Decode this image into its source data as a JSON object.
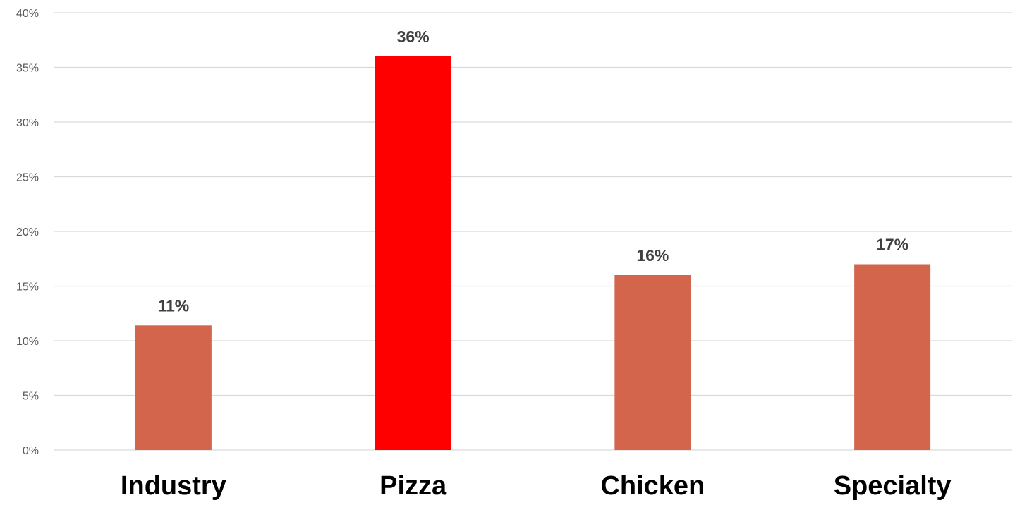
{
  "chart_data": {
    "type": "bar",
    "categories": [
      "Industry",
      "Pizza",
      "Chicken",
      "Specialty"
    ],
    "values": [
      11.4,
      36.0,
      16.0,
      17.0
    ],
    "data_labels": [
      "11%",
      "36%",
      "16%",
      "17%"
    ],
    "y_tick_labels": [
      "0%",
      "5%",
      "10%",
      "15%",
      "20%",
      "25%",
      "30%",
      "35%",
      "40%"
    ],
    "y_ticks": [
      0,
      5,
      10,
      15,
      20,
      25,
      30,
      35,
      40
    ],
    "ylim": [
      0,
      40
    ],
    "title": "",
    "xlabel": "",
    "ylabel": "",
    "grid": true,
    "legend": "none",
    "colors": {
      "default_bar": "#d2654b",
      "highlight_bar": "#ff0000",
      "highlight_category": "Pizza",
      "gridline": "#d9d9d9",
      "data_label": "#404040",
      "tick_label": "#595959"
    }
  }
}
